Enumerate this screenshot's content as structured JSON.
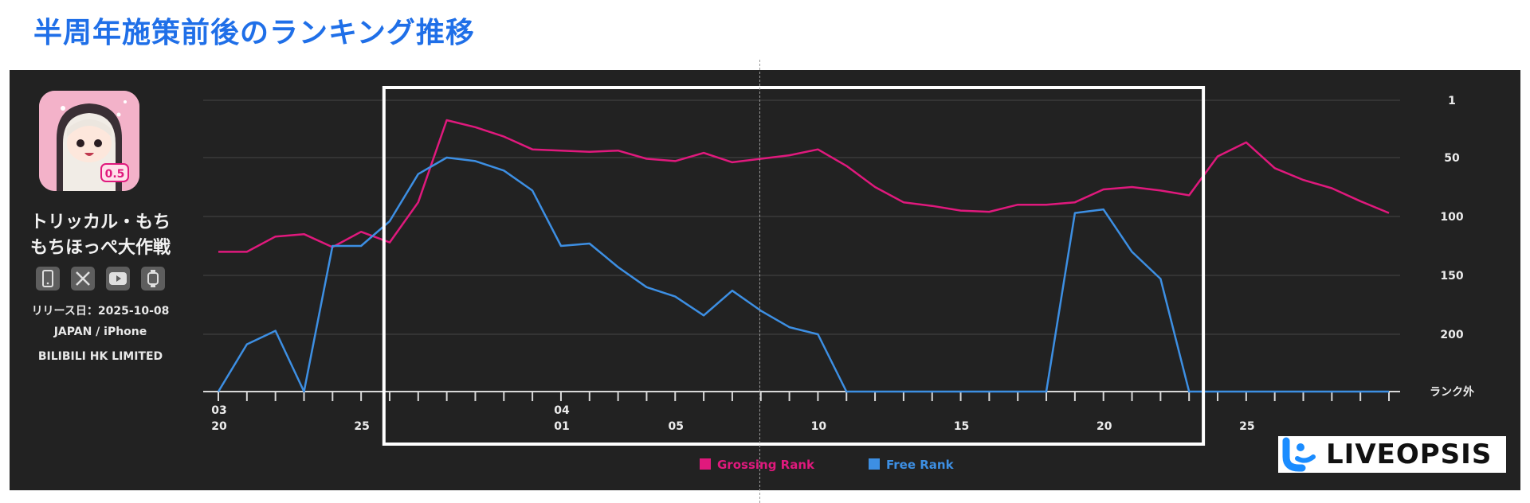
{
  "page": {
    "title": "半周年施策前後のランキング推移"
  },
  "app": {
    "name_line1": "トリッカル・もち",
    "name_line2": "もちほっぺ大作戦",
    "release": "リリース日：2025-10-08",
    "region": "JAPAN / iPhone",
    "publisher": "BILIBILI HK LIMITED",
    "icons": [
      "phone-icon",
      "x-icon",
      "youtube-icon",
      "watch-icon"
    ]
  },
  "logo": {
    "text": "LIVEOPSIS",
    "icon": "liveopsis-logo-icon",
    "color": "#1a8cff"
  },
  "chart_data": {
    "type": "line",
    "y_axis": {
      "ticks": [
        "1",
        "50",
        "100",
        "150",
        "200",
        "ランク外"
      ],
      "values": [
        1,
        50,
        100,
        150,
        200,
        240
      ],
      "inverted": true,
      "side": "right"
    },
    "x_axis": {
      "tick_labels": [
        {
          "index": 0,
          "top": "03",
          "bottom": "20"
        },
        {
          "index": 5,
          "top": "",
          "bottom": "25"
        },
        {
          "index": 12,
          "top": "04",
          "bottom": "01"
        },
        {
          "index": 16,
          "top": "",
          "bottom": "05"
        },
        {
          "index": 21,
          "top": "",
          "bottom": "10"
        },
        {
          "index": 26,
          "top": "",
          "bottom": "15"
        },
        {
          "index": 31,
          "top": "",
          "bottom": "20"
        },
        {
          "index": 36,
          "top": "",
          "bottom": "25"
        }
      ],
      "count": 42
    },
    "grid": true,
    "legend_position": "bottom-center",
    "highlight_range": [
      5.8,
      34.5
    ],
    "series": [
      {
        "name": "Grossing Rank",
        "color": "#e0197d",
        "values": [
          130,
          130,
          117,
          115,
          126,
          113,
          122,
          88,
          18,
          24,
          32,
          43,
          44,
          45,
          44,
          51,
          53,
          46,
          54,
          51,
          48,
          43,
          57,
          75,
          88,
          91,
          95,
          96,
          90,
          90,
          88,
          77,
          75,
          78,
          82,
          49,
          37,
          59,
          69,
          76,
          87,
          97
        ]
      },
      {
        "name": "Free Rank",
        "color": "#3d8fe3",
        "values": [
          240,
          207,
          197,
          240,
          125,
          125,
          104,
          64,
          50,
          53,
          61,
          78,
          125,
          123,
          143,
          160,
          168,
          184,
          163,
          180,
          194,
          200,
          240,
          240,
          240,
          240,
          240,
          240,
          240,
          240,
          97,
          94,
          130,
          153,
          240,
          240,
          240,
          240,
          240,
          240,
          240,
          240
        ]
      }
    ]
  }
}
